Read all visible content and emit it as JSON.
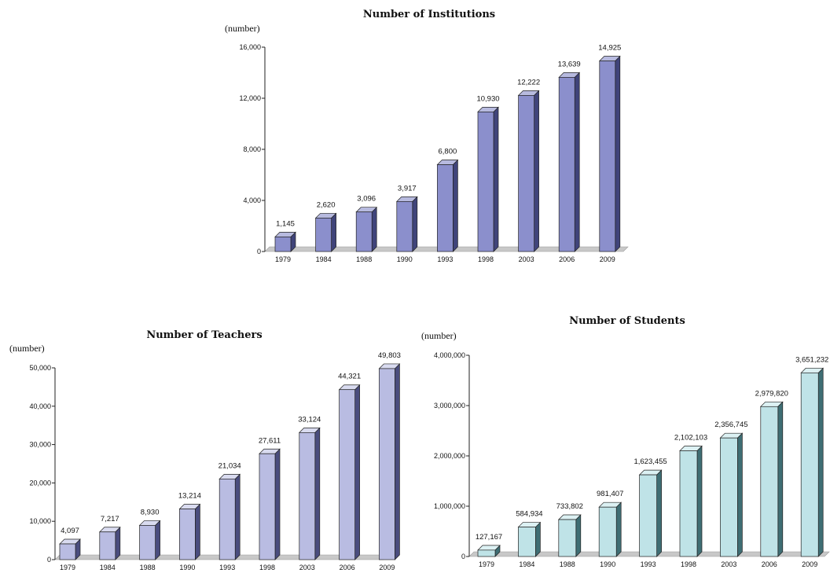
{
  "chart_data": [
    {
      "type": "bar",
      "title": "Number of Institutions",
      "ylabel": "(number)",
      "categories": [
        "1979",
        "1984",
        "1988",
        "1990",
        "1993",
        "1998",
        "2003",
        "2006",
        "2009"
      ],
      "values": [
        1145,
        2620,
        3096,
        3917,
        6800,
        10930,
        12222,
        13639,
        14925
      ],
      "value_labels": [
        "1,145",
        "2,620",
        "3,096",
        "3,917",
        "6,800",
        "10,930",
        "12,222",
        "13,639",
        "14,925"
      ],
      "yticks": [
        0,
        4000,
        8000,
        12000,
        16000
      ],
      "ytick_labels": [
        "0",
        "4,000",
        "8,000",
        "12,000",
        "16,000"
      ],
      "ylim": [
        0,
        16000
      ],
      "grid": false,
      "colors": {
        "front": "#8b8fcc",
        "top": "#b7badf",
        "side": "#40447a"
      }
    },
    {
      "type": "bar",
      "title": "Number of Teachers",
      "ylabel": "(number)",
      "categories": [
        "1979",
        "1984",
        "1988",
        "1990",
        "1993",
        "1998",
        "2003",
        "2006",
        "2009"
      ],
      "values": [
        4097,
        7217,
        8930,
        13214,
        21034,
        27611,
        33124,
        44321,
        49803
      ],
      "value_labels": [
        "4,097",
        "7,217",
        "8,930",
        "13,214",
        "21,034",
        "27,611",
        "33,124",
        "44,321",
        "49,803"
      ],
      "yticks": [
        0,
        10000,
        20000,
        30000,
        40000,
        50000
      ],
      "ytick_labels": [
        "0",
        "10,000",
        "20,000",
        "30,000",
        "40,000",
        "50,000"
      ],
      "ylim": [
        0,
        50000
      ],
      "grid": false,
      "colors": {
        "front": "#b9bce2",
        "top": "#d9dbf0",
        "side": "#4a4d7e"
      }
    },
    {
      "type": "bar",
      "title": "Number of Students",
      "ylabel": "(number)",
      "categories": [
        "1979",
        "1984",
        "1988",
        "1990",
        "1993",
        "1998",
        "2003",
        "2006",
        "2009"
      ],
      "values": [
        127167,
        584934,
        733802,
        981407,
        1623455,
        2102103,
        2356745,
        2979820,
        3651232
      ],
      "value_labels": [
        "127,167",
        "584,934",
        "733,802",
        "981,407",
        "1,623,455",
        "2,102,103",
        "2,356,745",
        "2,979,820",
        "3,651,232"
      ],
      "yticks": [
        0,
        1000000,
        2000000,
        3000000,
        4000000
      ],
      "ytick_labels": [
        "0",
        "1,000,000",
        "2,000,000",
        "3,000,000",
        "4,000,000"
      ],
      "ylim": [
        0,
        4000000
      ],
      "grid": false,
      "colors": {
        "front": "#bfe3e7",
        "top": "#dcf1f3",
        "side": "#3f6e74"
      }
    }
  ]
}
